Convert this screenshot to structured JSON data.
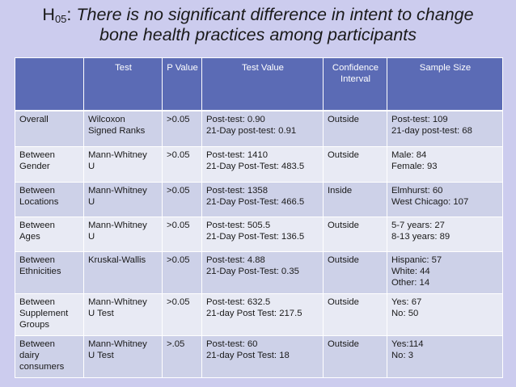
{
  "title": {
    "hypothesis_label": "H",
    "hypothesis_sub": "05",
    "colon": ":",
    "line1": "There is no significant difference in intent to change",
    "line2": "bone health practices among participants"
  },
  "table": {
    "headers": [
      "",
      "Test",
      "P Value",
      "Test Value",
      "Confidence Interval",
      "Sample Size"
    ],
    "rows": [
      {
        "category": [
          "Overall"
        ],
        "test": [
          "Wilcoxon",
          "Signed Ranks"
        ],
        "p": ">0.05",
        "value": [
          "Post-test: 0.90",
          "21-Day post-test: 0.91"
        ],
        "ci": "Outside",
        "sample": [
          "Post-test: 109",
          "21-day post-test: 68"
        ]
      },
      {
        "category": [
          "Between",
          "Gender"
        ],
        "test": [
          "Mann-Whitney",
          "U"
        ],
        "p": ">0.05",
        "value": [
          "Post-test: 1410",
          "21-Day Post-Test: 483.5"
        ],
        "ci": "Outside",
        "sample": [
          "Male: 84",
          "Female: 93"
        ]
      },
      {
        "category": [
          "Between",
          "Locations"
        ],
        "test": [
          "Mann-Whitney",
          "U"
        ],
        "p": ">0.05",
        "value": [
          "Post-test: 1358",
          "21-Day Post-Test: 466.5"
        ],
        "ci": "Inside",
        "sample": [
          "Elmhurst: 60",
          "West Chicago: 107"
        ]
      },
      {
        "category": [
          "Between",
          "Ages"
        ],
        "test": [
          "Mann-Whitney",
          "U"
        ],
        "p": ">0.05",
        "value": [
          "Post-test: 505.5",
          "21-Day Post-Test: 136.5"
        ],
        "ci": "Outside",
        "sample": [
          "5-7 years: 27",
          "8-13 years: 89"
        ]
      },
      {
        "category": [
          "Between",
          "Ethnicities"
        ],
        "test": [
          "Kruskal-Wallis"
        ],
        "p": ">0.05",
        "value": [
          "Post-test: 4.88",
          "21-Day Post-Test: 0.35"
        ],
        "ci": "Outside",
        "sample": [
          "Hispanic: 57",
          "White: 44",
          "Other: 14"
        ]
      },
      {
        "category": [
          "Between",
          "Supplement",
          "Groups"
        ],
        "test": [
          "Mann-Whitney",
          "U Test"
        ],
        "p": ">0.05",
        "value": [
          "Post-test: 632.5",
          "21-day Post Test: 217.5"
        ],
        "ci": "Outside",
        "sample": [
          "Yes: 67",
          "No: 50"
        ]
      },
      {
        "category": [
          "Between",
          "dairy",
          "consumers"
        ],
        "test": [
          "Mann-Whitney",
          "U Test"
        ],
        "p": ">.05",
        "value": [
          "Post-test: 60",
          "21-day Post Test: 18"
        ],
        "ci": "Outside",
        "sample": [
          "Yes:114",
          "No:  3"
        ]
      }
    ]
  },
  "colors": {
    "background": "#ccccee",
    "header": "#5b6bb5",
    "row_odd": "#cdd1e8",
    "row_even": "#e8eaf4"
  }
}
